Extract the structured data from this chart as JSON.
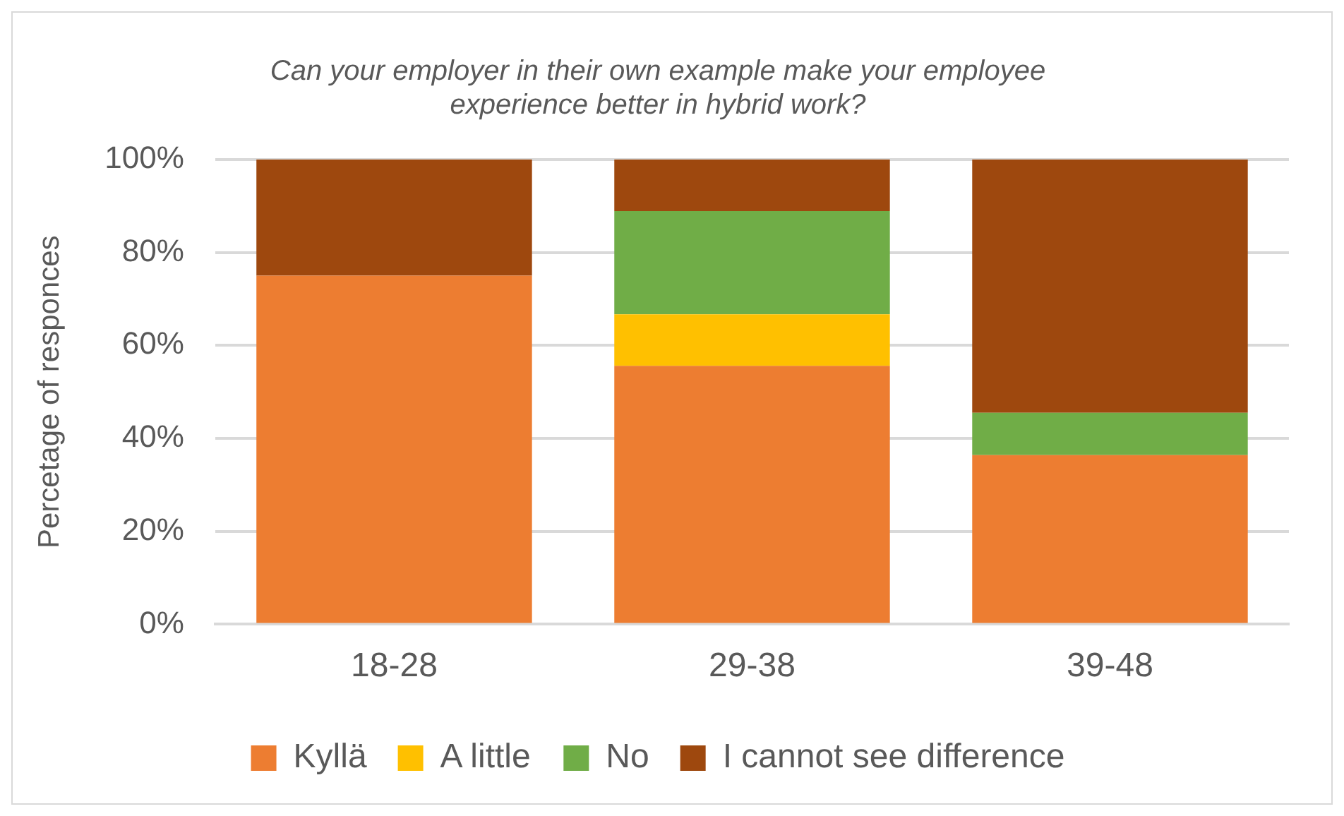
{
  "chart_data": {
    "type": "bar",
    "stacked": true,
    "title": [
      "Can your employer in their own example make your employee",
      "experience better in hybrid work?"
    ],
    "ylabel": "Percetage of responces",
    "categories": [
      "18-28",
      "29-38",
      "39-48"
    ],
    "series": [
      {
        "name": "Kyllä",
        "color": "#ed7d31",
        "values": [
          75,
          55.6,
          36.4
        ]
      },
      {
        "name": "A little",
        "color": "#ffc000",
        "values": [
          0,
          11.1,
          0
        ]
      },
      {
        "name": "No",
        "color": "#70ad47",
        "values": [
          0,
          22.2,
          9.1
        ]
      },
      {
        "name": "I cannot see difference",
        "color": "#9e480e",
        "values": [
          25,
          11.1,
          54.5
        ]
      }
    ],
    "ylim": [
      0,
      100
    ],
    "yticks": [
      {
        "value": 0,
        "label": "0%"
      },
      {
        "value": 20,
        "label": "20%"
      },
      {
        "value": 40,
        "label": "40%"
      },
      {
        "value": 60,
        "label": "60%"
      },
      {
        "value": 80,
        "label": "80%"
      },
      {
        "value": 100,
        "label": "100%"
      }
    ],
    "grid": "y",
    "legend": "bottom"
  }
}
